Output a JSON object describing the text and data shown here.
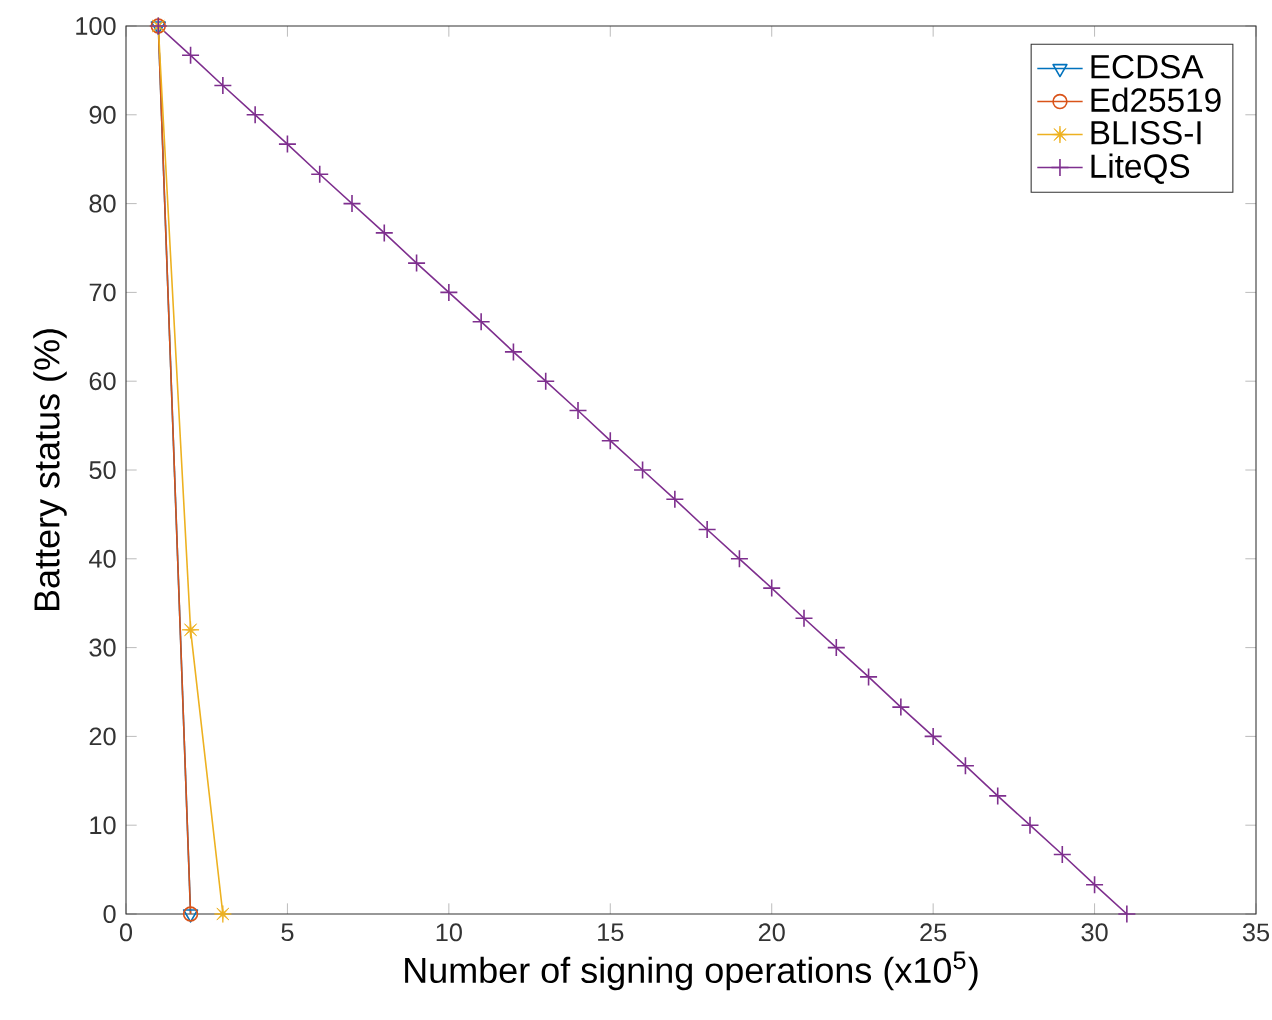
{
  "chart_data": {
    "type": "line",
    "xlabel": "Number of signing operations (x10$^{5}$)",
    "ylabel": "Battery status (%)",
    "xlim": [
      0,
      35
    ],
    "ylim": [
      0,
      100
    ],
    "xticks": [
      0,
      5,
      10,
      15,
      20,
      25,
      30,
      35
    ],
    "yticks": [
      0,
      10,
      20,
      30,
      40,
      50,
      60,
      70,
      80,
      90,
      100
    ],
    "grid": false,
    "legend": "top right",
    "series": [
      {
        "name": "ECDSA",
        "color": "#0072bd",
        "marker": "triangle",
        "x": [
          1,
          2
        ],
        "values": [
          100,
          0
        ]
      },
      {
        "name": "Ed25519",
        "color": "#d95319",
        "marker": "circle",
        "x": [
          1,
          2
        ],
        "values": [
          100,
          0
        ]
      },
      {
        "name": "BLISS-I",
        "color": "#edb120",
        "marker": "star",
        "x": [
          1,
          2,
          3
        ],
        "values": [
          100,
          32,
          0
        ]
      },
      {
        "name": "LiteQS",
        "color": "#7e2f8e",
        "marker": "cross",
        "x": [
          1,
          2,
          3,
          4,
          5,
          6,
          7,
          8,
          9,
          10,
          11,
          12,
          13,
          14,
          15,
          16,
          17,
          18,
          19,
          20,
          21,
          22,
          23,
          24,
          25,
          26,
          27,
          28,
          29,
          30,
          31
        ],
        "values": [
          100,
          96.7,
          93.3,
          90,
          86.7,
          83.3,
          80,
          76.7,
          73.3,
          70,
          66.7,
          63.3,
          60,
          56.7,
          53.3,
          50,
          46.7,
          43.3,
          40,
          36.7,
          33.3,
          30,
          26.7,
          23.3,
          20,
          16.7,
          13.3,
          10,
          6.7,
          3.3,
          0
        ]
      }
    ]
  }
}
